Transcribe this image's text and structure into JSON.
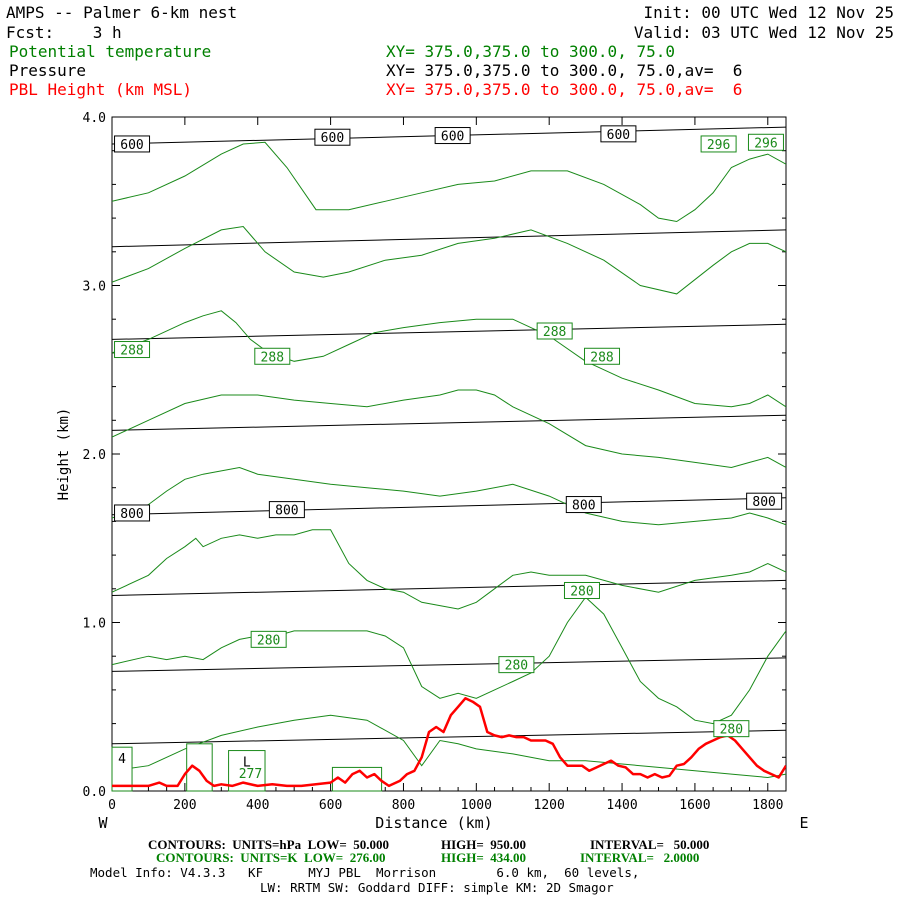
{
  "header": {
    "left1": "AMPS -- Palmer 6-km nest",
    "left2": "Fcst:    3 h",
    "right1": "Init: 00 UTC Wed 12 Nov 25",
    "right2": "Valid: 03 UTC Wed 12 Nov 25",
    "fields": [
      {
        "name": "Potential temperature",
        "xy": "XY= 375.0,375.0 to 300.0, 75.0",
        "color": "#008000"
      },
      {
        "name": "Pressure",
        "xy": "XY= 375.0,375.0 to 300.0, 75.0,av=  6",
        "color": "#000000"
      },
      {
        "name": "PBL Height (km MSL)",
        "xy": "XY= 375.0,375.0 to 300.0, 75.0,av=  6",
        "color": "#ff0000"
      }
    ]
  },
  "footer": {
    "pressure_contours": {
      "c1": "CONTOURS:  UNITS=hPa  LOW=  50.000",
      "c2": "HIGH=  950.00",
      "c3": "INTERVAL=   50.000"
    },
    "theta_contours": {
      "c1": "CONTOURS:  UNITS=K  LOW=  276.00",
      "c2": "HIGH=  434.00",
      "c3": "INTERVAL=   2.0000"
    },
    "model_info": "Model Info: V4.3.3   KF      MYJ PBL  Morrison        6.0 km,  60 levels,",
    "model_info2": "LW: RRTM SW: Goddard DIFF: simple KM: 2D Smagor"
  },
  "chart_data": {
    "type": "line",
    "xlabel": "Distance (km)",
    "ylabel": "Height (km)",
    "xlim": [
      0,
      1850
    ],
    "ylim": [
      0,
      4
    ],
    "x_ticks": [
      0,
      200,
      400,
      600,
      800,
      1000,
      1200,
      1400,
      1600,
      1800
    ],
    "x_tick_labels": [
      "0",
      "200",
      "400",
      "600",
      "800",
      "1000",
      "1200",
      "1400",
      "1600",
      "1800"
    ],
    "y_ticks": [
      0,
      1,
      2,
      3,
      4
    ],
    "y_tick_labels": [
      "0.0",
      "1.0",
      "2.0",
      "3.0",
      "4.0"
    ],
    "x_end_labels": {
      "left": "W",
      "right": "E"
    },
    "colors": {
      "pressure": "#000000",
      "theta": "#1a8a1a",
      "pbl": "#ff0000"
    },
    "pressure_lines": [
      {
        "x": [
          0,
          1850
        ],
        "y": [
          3.84,
          3.94
        ]
      },
      {
        "x": [
          0,
          1850
        ],
        "y": [
          3.23,
          3.33
        ]
      },
      {
        "x": [
          0,
          1850
        ],
        "y": [
          2.68,
          2.77
        ]
      },
      {
        "x": [
          0,
          1850
        ],
        "y": [
          2.14,
          2.23
        ]
      },
      {
        "x": [
          0,
          1850
        ],
        "y": [
          1.64,
          1.74
        ]
      },
      {
        "x": [
          0,
          1850
        ],
        "y": [
          1.16,
          1.25
        ]
      },
      {
        "x": [
          0,
          1850
        ],
        "y": [
          0.71,
          0.79
        ]
      },
      {
        "x": [
          0,
          1850
        ],
        "y": [
          0.28,
          0.36
        ]
      }
    ],
    "pressure_labels": [
      {
        "text": "600",
        "x": 55,
        "y": 3.84
      },
      {
        "text": "600",
        "x": 605,
        "y": 3.88
      },
      {
        "text": "600",
        "x": 935,
        "y": 3.89
      },
      {
        "text": "600",
        "x": 1390,
        "y": 3.9
      },
      {
        "text": "800",
        "x": 55,
        "y": 1.65
      },
      {
        "text": "800",
        "x": 480,
        "y": 1.67
      },
      {
        "text": "800",
        "x": 1295,
        "y": 1.7
      },
      {
        "text": "800",
        "x": 1790,
        "y": 1.72
      }
    ],
    "theta_lines": [
      {
        "x": [
          0,
          100,
          200,
          300,
          360,
          420,
          480,
          560,
          650,
          750,
          850,
          950,
          1050,
          1150,
          1250,
          1350,
          1450,
          1500,
          1550,
          1600,
          1650,
          1700,
          1750,
          1800,
          1850
        ],
        "y": [
          3.5,
          3.55,
          3.65,
          3.78,
          3.84,
          3.85,
          3.7,
          3.45,
          3.45,
          3.5,
          3.55,
          3.6,
          3.62,
          3.68,
          3.68,
          3.6,
          3.48,
          3.4,
          3.38,
          3.45,
          3.55,
          3.7,
          3.75,
          3.78,
          3.72
        ]
      },
      {
        "x": [
          0,
          100,
          200,
          300,
          360,
          420,
          500,
          580,
          650,
          750,
          850,
          950,
          1050,
          1150,
          1250,
          1350,
          1450,
          1550,
          1650,
          1700,
          1750,
          1800,
          1850
        ],
        "y": [
          3.02,
          3.1,
          3.22,
          3.33,
          3.35,
          3.2,
          3.08,
          3.05,
          3.08,
          3.15,
          3.18,
          3.25,
          3.28,
          3.33,
          3.25,
          3.15,
          3.0,
          2.95,
          3.12,
          3.2,
          3.25,
          3.25,
          3.2
        ]
      },
      {
        "x": [
          0,
          100,
          200,
          250,
          300,
          340,
          380,
          430,
          500,
          580,
          650,
          720,
          800,
          900,
          1000,
          1100,
          1200,
          1300,
          1400,
          1500,
          1600,
          1700,
          1750,
          1800,
          1850
        ],
        "y": [
          2.6,
          2.68,
          2.78,
          2.82,
          2.85,
          2.78,
          2.68,
          2.6,
          2.55,
          2.58,
          2.65,
          2.72,
          2.75,
          2.78,
          2.8,
          2.8,
          2.7,
          2.55,
          2.45,
          2.38,
          2.3,
          2.28,
          2.3,
          2.35,
          2.28
        ]
      },
      {
        "x": [
          0,
          100,
          200,
          300,
          400,
          500,
          600,
          700,
          800,
          900,
          950,
          1000,
          1050,
          1100,
          1200,
          1300,
          1400,
          1500,
          1600,
          1700,
          1750,
          1800,
          1850
        ],
        "y": [
          2.1,
          2.2,
          2.3,
          2.35,
          2.35,
          2.32,
          2.3,
          2.28,
          2.32,
          2.35,
          2.38,
          2.38,
          2.35,
          2.28,
          2.18,
          2.05,
          2.0,
          1.98,
          1.95,
          1.92,
          1.95,
          1.98,
          1.92
        ]
      },
      {
        "x": [
          0,
          100,
          150,
          200,
          250,
          300,
          350,
          400,
          500,
          600,
          700,
          800,
          900,
          1000,
          1100,
          1200,
          1300,
          1400,
          1500,
          1600,
          1700,
          1750,
          1800,
          1850
        ],
        "y": [
          1.62,
          1.7,
          1.78,
          1.85,
          1.88,
          1.9,
          1.92,
          1.88,
          1.85,
          1.82,
          1.8,
          1.78,
          1.75,
          1.78,
          1.82,
          1.75,
          1.65,
          1.6,
          1.58,
          1.6,
          1.62,
          1.65,
          1.62,
          1.58
        ]
      },
      {
        "x": [
          0,
          100,
          150,
          200,
          230,
          250,
          300,
          350,
          400,
          450,
          500,
          550,
          600,
          650,
          700,
          750,
          800,
          850,
          900,
          950,
          1000,
          1050,
          1100,
          1150,
          1200,
          1300,
          1400,
          1500,
          1600,
          1700,
          1750,
          1800,
          1850
        ],
        "y": [
          1.18,
          1.28,
          1.38,
          1.45,
          1.5,
          1.45,
          1.5,
          1.52,
          1.5,
          1.52,
          1.52,
          1.55,
          1.55,
          1.35,
          1.25,
          1.2,
          1.18,
          1.12,
          1.1,
          1.08,
          1.12,
          1.2,
          1.28,
          1.3,
          1.28,
          1.28,
          1.22,
          1.18,
          1.25,
          1.28,
          1.3,
          1.35,
          1.3
        ]
      },
      {
        "x": [
          0,
          100,
          150,
          200,
          250,
          300,
          350,
          400,
          450,
          500,
          550,
          600,
          650,
          700,
          750,
          800,
          850,
          900,
          950,
          1000,
          1050,
          1100,
          1150,
          1200,
          1250,
          1300,
          1350,
          1400,
          1450,
          1500,
          1550,
          1600,
          1650,
          1700,
          1750,
          1800,
          1850
        ],
        "y": [
          0.75,
          0.8,
          0.78,
          0.8,
          0.78,
          0.85,
          0.9,
          0.92,
          0.92,
          0.95,
          0.95,
          0.95,
          0.95,
          0.95,
          0.92,
          0.85,
          0.62,
          0.55,
          0.58,
          0.55,
          0.6,
          0.65,
          0.7,
          0.8,
          1.0,
          1.15,
          1.05,
          0.85,
          0.65,
          0.55,
          0.5,
          0.42,
          0.4,
          0.45,
          0.6,
          0.8,
          0.95
        ]
      },
      {
        "x": [
          0,
          100,
          200,
          300,
          400,
          500,
          600,
          700,
          800,
          850,
          900,
          950,
          1000,
          1100,
          1200,
          1300,
          1400,
          1500,
          1600,
          1700,
          1800,
          1850
        ],
        "y": [
          0.12,
          0.15,
          0.25,
          0.33,
          0.38,
          0.42,
          0.45,
          0.42,
          0.3,
          0.15,
          0.3,
          0.28,
          0.25,
          0.22,
          0.18,
          0.18,
          0.16,
          0.14,
          0.12,
          0.1,
          0.08,
          0.1
        ]
      }
    ],
    "theta_labels": [
      {
        "text": "296",
        "x": 1665,
        "y": 3.84
      },
      {
        "text": "296",
        "x": 1795,
        "y": 3.85
      },
      {
        "text": "288",
        "x": 55,
        "y": 2.62
      },
      {
        "text": "288",
        "x": 440,
        "y": 2.58
      },
      {
        "text": "288",
        "x": 1215,
        "y": 2.73
      },
      {
        "text": "288",
        "x": 1345,
        "y": 2.58
      },
      {
        "text": "280",
        "x": 430,
        "y": 0.9
      },
      {
        "text": "280",
        "x": 1110,
        "y": 0.75
      },
      {
        "text": "280",
        "x": 1290,
        "y": 1.19
      },
      {
        "text": "280",
        "x": 1700,
        "y": 0.37
      }
    ],
    "terrain_boxes": [
      {
        "x0": 0,
        "x1": 55,
        "y0": 0.0,
        "y1": 0.26,
        "text": "4"
      },
      {
        "x0": 205,
        "x1": 275,
        "y0": 0.0,
        "y1": 0.28,
        "text": ""
      },
      {
        "x0": 320,
        "x1": 420,
        "y0": 0.0,
        "y1": 0.24,
        "text": "L"
      },
      {
        "x0": 605,
        "x1": 740,
        "y0": 0.0,
        "y1": 0.14,
        "text": ""
      }
    ],
    "terrain_labels": [
      {
        "text": "277",
        "x": 380,
        "y": 0.1
      }
    ],
    "pbl_height": {
      "x": [
        0,
        50,
        100,
        130,
        150,
        180,
        200,
        220,
        240,
        260,
        280,
        300,
        330,
        360,
        400,
        440,
        480,
        520,
        560,
        600,
        620,
        640,
        660,
        680,
        700,
        720,
        740,
        760,
        790,
        810,
        830,
        850,
        870,
        890,
        910,
        930,
        950,
        970,
        990,
        1010,
        1030,
        1050,
        1070,
        1090,
        1110,
        1130,
        1150,
        1170,
        1190,
        1210,
        1230,
        1250,
        1270,
        1290,
        1310,
        1330,
        1350,
        1370,
        1390,
        1410,
        1430,
        1450,
        1470,
        1490,
        1510,
        1530,
        1550,
        1570,
        1590,
        1610,
        1630,
        1650,
        1670,
        1690,
        1710,
        1730,
        1750,
        1770,
        1790,
        1810,
        1830,
        1850
      ],
      "y": [
        0.03,
        0.03,
        0.03,
        0.05,
        0.03,
        0.03,
        0.1,
        0.15,
        0.12,
        0.06,
        0.03,
        0.04,
        0.03,
        0.05,
        0.03,
        0.04,
        0.03,
        0.03,
        0.04,
        0.05,
        0.08,
        0.05,
        0.1,
        0.12,
        0.08,
        0.1,
        0.06,
        0.03,
        0.06,
        0.1,
        0.12,
        0.2,
        0.35,
        0.38,
        0.35,
        0.45,
        0.5,
        0.55,
        0.53,
        0.5,
        0.35,
        0.33,
        0.32,
        0.33,
        0.32,
        0.32,
        0.3,
        0.3,
        0.3,
        0.28,
        0.2,
        0.15,
        0.15,
        0.15,
        0.12,
        0.14,
        0.16,
        0.18,
        0.15,
        0.14,
        0.1,
        0.1,
        0.08,
        0.1,
        0.08,
        0.09,
        0.15,
        0.16,
        0.2,
        0.25,
        0.28,
        0.3,
        0.32,
        0.33,
        0.3,
        0.25,
        0.2,
        0.15,
        0.12,
        0.1,
        0.08,
        0.15
      ]
    }
  }
}
